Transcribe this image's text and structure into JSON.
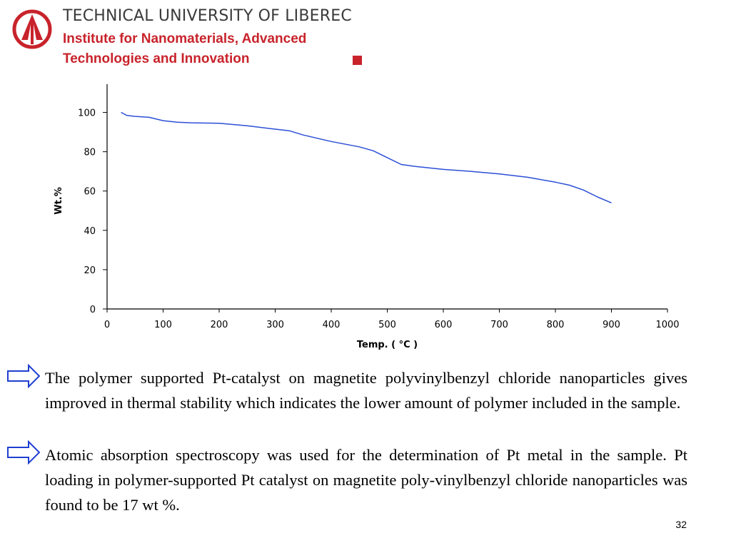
{
  "header": {
    "university": "TECHNICAL UNIVERSITY OF LIBEREC",
    "institute_line1": "Institute for Nanomaterials, Advanced",
    "institute_line2": "Technologies and Innovation"
  },
  "colors": {
    "brand_red": "#c8232b",
    "series_blue": "#2b4fd6",
    "arrow_blue": "#1f3fd0"
  },
  "icons": {
    "logo": "university-logo-icon",
    "bullet": "right-arrow-icon"
  },
  "chart_data": {
    "type": "line",
    "xlabel": "Temp. ( °C )",
    "ylabel": "Wt.%",
    "xlim": [
      0,
      1000
    ],
    "ylim": [
      0,
      110
    ],
    "xticks": [
      0,
      100,
      200,
      300,
      400,
      500,
      600,
      700,
      800,
      900,
      1000
    ],
    "yticks": [
      0,
      20,
      40,
      60,
      80,
      100
    ],
    "grid": false,
    "series": [
      {
        "x": [
          25,
          35,
          50,
          75,
          100,
          125,
          150,
          200,
          250,
          300,
          325,
          350,
          400,
          450,
          475,
          500,
          525,
          550,
          600,
          650,
          700,
          750,
          800,
          825,
          850,
          875,
          900
        ],
        "values": [
          100,
          98.5,
          98,
          97.5,
          95.8,
          95,
          94.7,
          94.5,
          93.2,
          91.5,
          90.7,
          88.5,
          85.2,
          82.5,
          80.5,
          77,
          73.5,
          72.5,
          71,
          70,
          68.7,
          67,
          64.5,
          63,
          60.5,
          57,
          54
        ]
      }
    ]
  },
  "body": {
    "paragraph1": "The polymer supported Pt-catalyst on magnetite polyvinylbenzyl chloride nanoparticles gives improved in thermal stability which indicates the lower amount of polymer included in the sample.",
    "paragraph2": "Atomic absorption spectroscopy was used for the determination of Pt metal in the sample. Pt loading in polymer-supported Pt catalyst on magnetite poly-vinylbenzyl chloride nanoparticles was found to be 17 wt %."
  },
  "footer": {
    "slide_number": "32"
  }
}
